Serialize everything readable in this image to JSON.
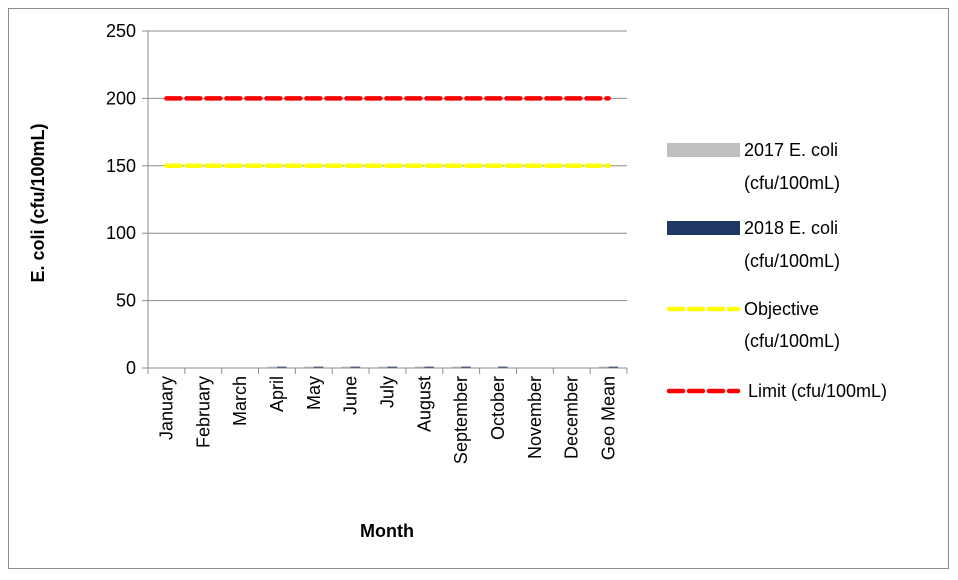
{
  "chart_data": {
    "type": "bar",
    "title": "",
    "xlabel": "Month",
    "ylabel": "E. coli (cfu/100mL)",
    "ylim": [
      0,
      250
    ],
    "yticks": [
      0,
      50,
      100,
      150,
      200,
      250
    ],
    "grid": true,
    "legend_position": "right",
    "categories": [
      "January",
      "February",
      "March",
      "April",
      "May",
      "June",
      "July",
      "August",
      "September",
      "October",
      "November",
      "December",
      "Geo Mean"
    ],
    "series": [
      {
        "name": "2017 E. coli (cfu/100mL)",
        "kind": "bar",
        "color": "#BFBFBF",
        "values": [
          0,
          0,
          0,
          1,
          1,
          1,
          1,
          1,
          1,
          0,
          0,
          0,
          1
        ]
      },
      {
        "name": "2018 E. coli (cfu/100mL)",
        "kind": "bar",
        "color": "#1F3864",
        "values": [
          0,
          0,
          0,
          1,
          1,
          1,
          1,
          1,
          1,
          1,
          0,
          0,
          1
        ]
      },
      {
        "name": "Objective (cfu/100mL)",
        "kind": "line",
        "style": "dashed",
        "color": "#FFFF00",
        "values": [
          150,
          150,
          150,
          150,
          150,
          150,
          150,
          150,
          150,
          150,
          150,
          150,
          150
        ]
      },
      {
        "name": "Limit (cfu/100mL)",
        "kind": "line",
        "style": "dashed",
        "color": "#FF0000",
        "values": [
          200,
          200,
          200,
          200,
          200,
          200,
          200,
          200,
          200,
          200,
          200,
          200,
          200
        ]
      }
    ],
    "legend": [
      {
        "line1": "2017 E. coli",
        "line2": "(cfu/100mL)"
      },
      {
        "line1": "2018 E. coli",
        "line2": "(cfu/100mL)"
      },
      {
        "line1": "Objective",
        "line2": "(cfu/100mL)"
      },
      {
        "line1": "Limit (cfu/100mL)",
        "line2": ""
      }
    ]
  }
}
